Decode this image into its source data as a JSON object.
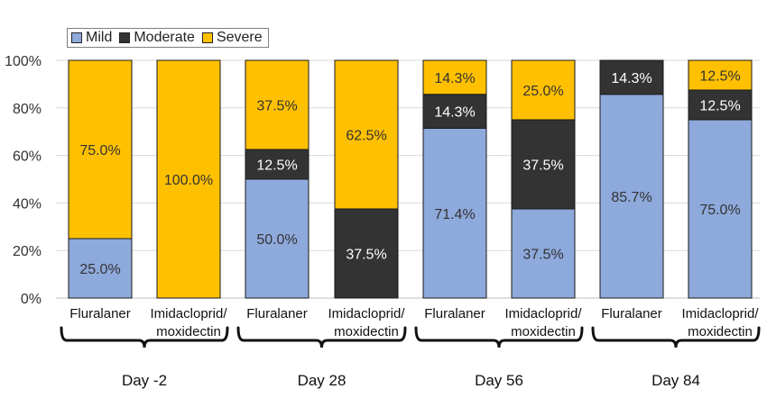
{
  "chart_data": {
    "type": "bar",
    "stacked": true,
    "percent": true,
    "title": "",
    "xlabel": "",
    "ylabel": "",
    "ylim": [
      0,
      100
    ],
    "yticks": [
      "0%",
      "20%",
      "40%",
      "60%",
      "80%",
      "100%"
    ],
    "grid": true,
    "legend": "top-left",
    "groups": [
      {
        "label": "Day -2",
        "bars": [
          0,
          1
        ]
      },
      {
        "label": "Day 28",
        "bars": [
          2,
          3
        ]
      },
      {
        "label": "Day 56",
        "bars": [
          4,
          5
        ]
      },
      {
        "label": "Day 84",
        "bars": [
          6,
          7
        ]
      }
    ],
    "categories": [
      [
        "Fluralaner"
      ],
      [
        "Imidacloprid/",
        "moxidectin"
      ],
      [
        "Fluralaner"
      ],
      [
        "Imidacloprid/",
        "moxidectin"
      ],
      [
        "Fluralaner"
      ],
      [
        "Imidacloprid/",
        "moxidectin"
      ],
      [
        "Fluralaner"
      ],
      [
        "Imidacloprid/",
        "moxidectin"
      ]
    ],
    "series": [
      {
        "name": "Mild",
        "color": "#8EA9DB",
        "label_color": "#333333",
        "values": [
          25.0,
          0,
          50.0,
          0,
          71.4,
          37.5,
          85.7,
          75.0
        ],
        "labels": [
          "25.0%",
          "",
          "50.0%",
          "",
          "71.4%",
          "37.5%",
          "85.7%",
          "75.0%"
        ]
      },
      {
        "name": "Moderate",
        "color": "#333333",
        "label_color": "#ffffff",
        "values": [
          0,
          0,
          12.5,
          37.5,
          14.3,
          37.5,
          14.3,
          12.5
        ],
        "labels": [
          "",
          "",
          "12.5%",
          "37.5%",
          "14.3%",
          "37.5%",
          "14.3%",
          "12.5%"
        ]
      },
      {
        "name": "Severe",
        "color": "#FFC000",
        "label_color": "#333333",
        "values": [
          75.0,
          100.0,
          37.5,
          62.5,
          14.3,
          25.0,
          0,
          12.5
        ],
        "labels": [
          "75.0%",
          "100.0%",
          "37.5%",
          "62.5%",
          "14.3%",
          "25.0%",
          "",
          "12.5%"
        ]
      }
    ]
  }
}
